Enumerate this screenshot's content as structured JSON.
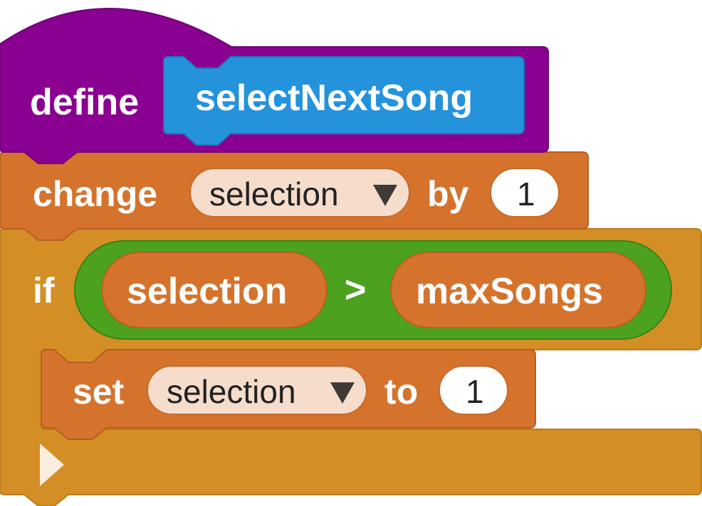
{
  "define_block": {
    "keyword": "define",
    "procedure_name": "selectNextSong"
  },
  "change_block": {
    "keyword": "change",
    "variable": "selection",
    "by_label": "by",
    "amount": "1"
  },
  "if_block": {
    "keyword": "if",
    "condition": {
      "left": "selection",
      "operator": ">",
      "right": "maxSongs"
    }
  },
  "set_block": {
    "keyword": "set",
    "variable": "selection",
    "to_label": "to",
    "value": "1"
  },
  "dropdown_icon": "caret-down-icon",
  "collapse_icon": "triangle-right-icon",
  "colors": {
    "define_purple": "#8a0090",
    "procedure_blue": "#2592dc",
    "variables_orange": "#d5732c",
    "control_gold": "#d38f25",
    "operator_green": "#4ca21f",
    "dropdown_field": "#f5dccb",
    "number_field": "#ffffff"
  }
}
